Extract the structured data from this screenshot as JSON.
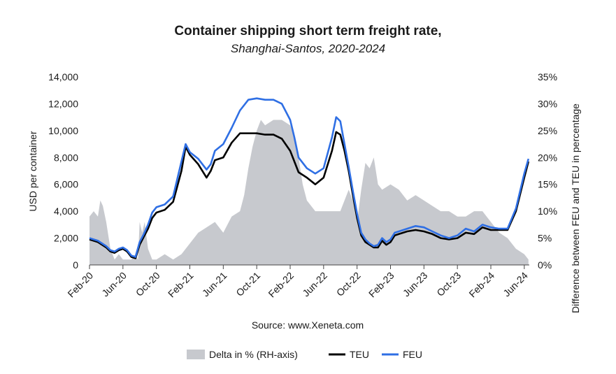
{
  "chart_data": {
    "type": "line",
    "title": "Container shipping short term freight rate,",
    "subtitle": "Shanghai-Santos, 2020-2024",
    "ylabel": "USD per container",
    "y2label": "Difference between FEU and TEU in percentage",
    "source": "Source: www.Xeneta.com",
    "ylim": [
      0,
      14000
    ],
    "y2lim": [
      0,
      35
    ],
    "yticks": [
      "0",
      "2,000",
      "4,000",
      "6,000",
      "8,000",
      "10,000",
      "12,000",
      "14,000"
    ],
    "y2ticks": [
      "0%",
      "5%",
      "10%",
      "15%",
      "20%",
      "25%",
      "30%",
      "35%"
    ],
    "xticks": [
      "Feb-20",
      "Jun-20",
      "Oct-20",
      "Feb-21",
      "Jun-21",
      "Oct-21",
      "Feb-22",
      "Jun-22",
      "Oct-22",
      "Feb-23",
      "Jun-23",
      "Oct-23",
      "Feb-24",
      "Jun-24"
    ],
    "x_months": [
      0,
      4,
      8,
      12,
      16,
      20,
      24,
      28,
      32,
      36,
      40,
      44,
      48,
      52
    ],
    "x_unit": "months from Feb-20",
    "xlim": [
      0,
      52.6
    ],
    "grid": false,
    "legend_position": "bottom",
    "colors": {
      "delta": "#c7c9ce",
      "teu": "#000000",
      "feu": "#2f6fe4"
    },
    "series": [
      {
        "name": "Delta in % (RH-axis)",
        "axis": "right",
        "kind": "area",
        "x": [
          0,
          0.5,
          1,
          1.3,
          1.6,
          2,
          2.5,
          3,
          3.5,
          4,
          4.5,
          5,
          5.5,
          5.8,
          6,
          6.3,
          6.6,
          7,
          7.5,
          8,
          9,
          10,
          11,
          12,
          13,
          14,
          15,
          16,
          17,
          18,
          18.5,
          19,
          19.5,
          20,
          20.5,
          21,
          22,
          23,
          24,
          24.5,
          25,
          25.5,
          26,
          27,
          28,
          29,
          30,
          30.5,
          31,
          31.5,
          32,
          32.5,
          33,
          33.5,
          34,
          34.5,
          35,
          36,
          37,
          38,
          39,
          40,
          41,
          42,
          43,
          44,
          45,
          46,
          47,
          48,
          49,
          50,
          51,
          52,
          52.5
        ],
        "values": [
          9,
          10,
          9,
          12,
          11,
          8,
          3,
          1,
          2,
          1,
          1,
          1,
          2,
          1,
          8,
          6,
          8,
          3,
          1,
          1,
          2,
          1,
          2,
          4,
          6,
          7,
          8,
          6,
          9,
          10,
          13,
          18,
          22,
          25,
          27,
          26,
          27,
          27,
          26,
          24,
          20,
          15,
          12,
          10,
          10,
          10,
          10,
          12,
          14,
          12,
          8,
          14,
          19,
          18,
          20,
          15,
          14,
          15,
          14,
          12,
          13,
          12,
          11,
          10,
          10,
          9,
          9,
          10,
          10,
          8,
          6,
          5,
          3,
          2,
          1
        ]
      },
      {
        "name": "TEU",
        "axis": "left",
        "kind": "line",
        "x": [
          0,
          1,
          2,
          2.5,
          3,
          3.5,
          4,
          4.5,
          5,
          5.5,
          6,
          6.5,
          7,
          7.5,
          8,
          9,
          10,
          11,
          11.5,
          12,
          13,
          14,
          14.5,
          15,
          16,
          17,
          18,
          19,
          20,
          21,
          22,
          23,
          24,
          24.5,
          25,
          26,
          27,
          28,
          29,
          29.5,
          30,
          30.5,
          31,
          31.5,
          32,
          32.5,
          33,
          33.5,
          34,
          34.5,
          35,
          35.5,
          36,
          36.5,
          37,
          38,
          39,
          40,
          41,
          42,
          43,
          44,
          45,
          46,
          47,
          48,
          49,
          50,
          51,
          52,
          52.5
        ],
        "values": [
          1900,
          1700,
          1300,
          1000,
          900,
          1100,
          1200,
          1000,
          600,
          500,
          1500,
          2100,
          2700,
          3500,
          3900,
          4100,
          4700,
          7000,
          8800,
          8200,
          7500,
          6500,
          7000,
          7800,
          8000,
          9100,
          9800,
          9800,
          9800,
          9700,
          9700,
          9400,
          8500,
          7700,
          6900,
          6500,
          6000,
          6500,
          8500,
          9900,
          9700,
          8500,
          7000,
          5200,
          3500,
          2200,
          1700,
          1500,
          1300,
          1300,
          1800,
          1500,
          1700,
          2200,
          2300,
          2500,
          2600,
          2500,
          2300,
          2000,
          1900,
          2000,
          2400,
          2300,
          2800,
          2600,
          2600,
          2600,
          4000,
          6500,
          7700
        ]
      },
      {
        "name": "FEU",
        "axis": "left",
        "kind": "line",
        "x": [
          0,
          1,
          2,
          2.5,
          3,
          3.5,
          4,
          4.5,
          5,
          5.5,
          6,
          6.5,
          7,
          7.5,
          8,
          9,
          10,
          11,
          11.5,
          12,
          13,
          14,
          14.5,
          15,
          16,
          17,
          18,
          19,
          20,
          21,
          22,
          23,
          24,
          24.5,
          25,
          26,
          27,
          28,
          29,
          29.5,
          30,
          30.5,
          31,
          31.5,
          32,
          32.5,
          33,
          33.5,
          34,
          34.5,
          35,
          35.5,
          36,
          36.5,
          37,
          38,
          39,
          40,
          41,
          42,
          43,
          44,
          45,
          46,
          47,
          48,
          49,
          50,
          51,
          52,
          52.5
        ],
        "values": [
          2000,
          1800,
          1400,
          1100,
          1000,
          1200,
          1300,
          1100,
          700,
          600,
          1700,
          2300,
          3000,
          3900,
          4300,
          4500,
          5100,
          7700,
          9000,
          8400,
          7900,
          7100,
          7500,
          8500,
          9000,
          10200,
          11500,
          12300,
          12400,
          12300,
          12300,
          12000,
          10800,
          9500,
          8000,
          7200,
          6800,
          7200,
          9500,
          11000,
          10700,
          9000,
          7300,
          5500,
          3800,
          2400,
          1900,
          1600,
          1400,
          1500,
          2000,
          1700,
          1900,
          2400,
          2500,
          2700,
          2900,
          2800,
          2500,
          2200,
          2000,
          2200,
          2700,
          2500,
          3000,
          2800,
          2700,
          2700,
          4200,
          6800,
          7900
        ]
      }
    ]
  }
}
